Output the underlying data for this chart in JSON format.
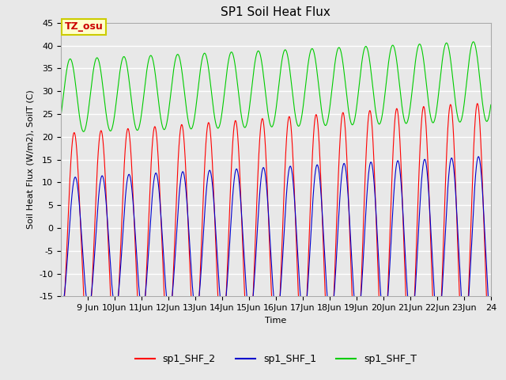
{
  "title": "SP1 Soil Heat Flux",
  "xlabel": "Time",
  "ylabel": "Soil Heat Flux (W/m2), SoilT (C)",
  "ylim": [
    -15,
    45
  ],
  "xlim_days": [
    8.0,
    24.0
  ],
  "xtick_positions": [
    9,
    10,
    11,
    12,
    13,
    14,
    15,
    16,
    17,
    18,
    19,
    20,
    21,
    22,
    23,
    24
  ],
  "xtick_labels": [
    "9 Jun",
    "10Jun",
    "11Jun",
    "12Jun",
    "13Jun",
    "14Jun",
    "15Jun",
    "16Jun",
    "17Jun",
    "18Jun",
    "19Jun",
    "20Jun",
    "21Jun",
    "22Jun",
    "23Jun",
    "24"
  ],
  "ytick_positions": [
    -15,
    -10,
    -5,
    0,
    5,
    10,
    15,
    20,
    25,
    30,
    35,
    40,
    45
  ],
  "line_colors": {
    "sp1_SHF_2": "#ff0000",
    "sp1_SHF_1": "#0000cc",
    "sp1_SHF_T": "#00cc00"
  },
  "annotation_text": "TZ_osu",
  "annotation_color": "#cc0000",
  "annotation_bg": "#ffffcc",
  "annotation_border": "#cccc00",
  "bg_color": "#e8e8e8",
  "plot_bg_color": "#e8e8e8",
  "grid_color": "#ffffff",
  "title_fontsize": 11,
  "label_fontsize": 8,
  "tick_fontsize": 8,
  "legend_fontsize": 9,
  "n_points": 4000,
  "period_days": 1.0
}
